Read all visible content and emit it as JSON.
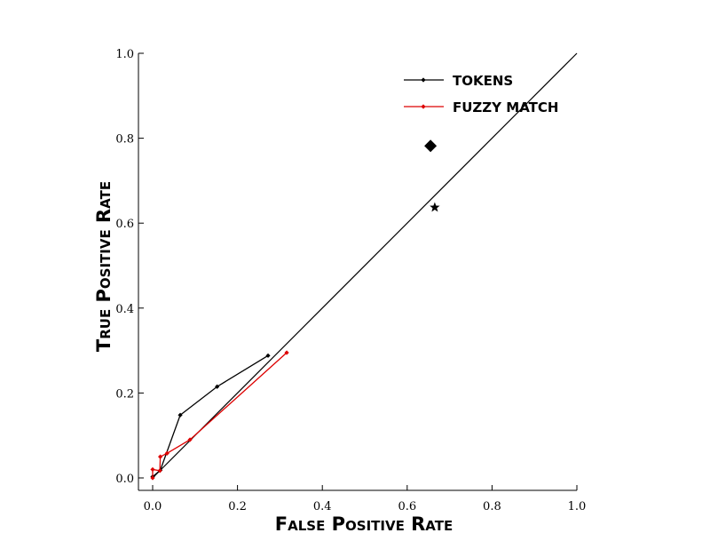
{
  "chart_data": {
    "type": "line",
    "xlabel": "False Positive Rate",
    "ylabel": "True Positive Rate",
    "xlim": [
      0,
      1
    ],
    "ylim": [
      0,
      1
    ],
    "xticks": [
      "0.0",
      "0.2",
      "0.4",
      "0.6",
      "0.8",
      "1.0"
    ],
    "yticks": [
      "0.0",
      "0.2",
      "0.4",
      "0.6",
      "0.8",
      "1.0"
    ],
    "grid": false,
    "legend_position": "top-right",
    "diagonal_reference": {
      "from": [
        0,
        0
      ],
      "to": [
        1,
        1
      ],
      "color": "#000000"
    },
    "series": [
      {
        "name": "TOKENS",
        "color": "#000000",
        "x": [
          0.0,
          0.018,
          0.065,
          0.152,
          0.272
        ],
        "y": [
          0.003,
          0.018,
          0.148,
          0.215,
          0.288
        ]
      },
      {
        "name": "FUZZY MATCH",
        "color": "#dd0000",
        "x": [
          0.0,
          0.0,
          0.017,
          0.018,
          0.034,
          0.088,
          0.316
        ],
        "y": [
          0.0,
          0.02,
          0.017,
          0.05,
          0.058,
          0.09,
          0.295
        ]
      }
    ],
    "special_points": [
      {
        "marker": "diamond",
        "x": 0.655,
        "y": 0.782,
        "color": "#000000"
      },
      {
        "marker": "star",
        "x": 0.665,
        "y": 0.637,
        "color": "#000000"
      }
    ]
  }
}
